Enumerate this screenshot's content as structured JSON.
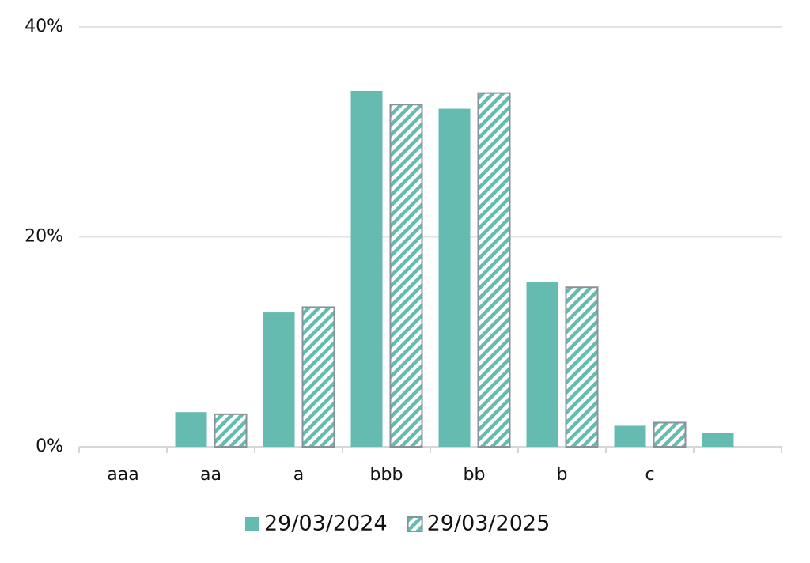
{
  "chart_data": {
    "type": "bar",
    "categories": [
      "aaa",
      "aa",
      "a",
      "bbb",
      "bb",
      "b",
      "c",
      null
    ],
    "series": [
      {
        "name": "29/03/2024",
        "color": "#66bbb0",
        "hatch": false,
        "values": [
          0,
          3.3,
          12.8,
          33.9,
          32.2,
          15.7,
          2.0,
          1.3
        ]
      },
      {
        "name": "29/03/2025",
        "color": "#66bbb0",
        "hatch": true,
        "values": [
          0,
          3.1,
          13.3,
          32.6,
          33.7,
          15.2,
          2.3,
          null
        ]
      }
    ],
    "ylim": [
      0,
      40
    ],
    "yticks": [
      {
        "value": 0,
        "label": "0%"
      },
      {
        "value": 20,
        "label": "20%"
      },
      {
        "value": 40,
        "label": "40%"
      }
    ],
    "grid": true,
    "legend": "bottom"
  }
}
